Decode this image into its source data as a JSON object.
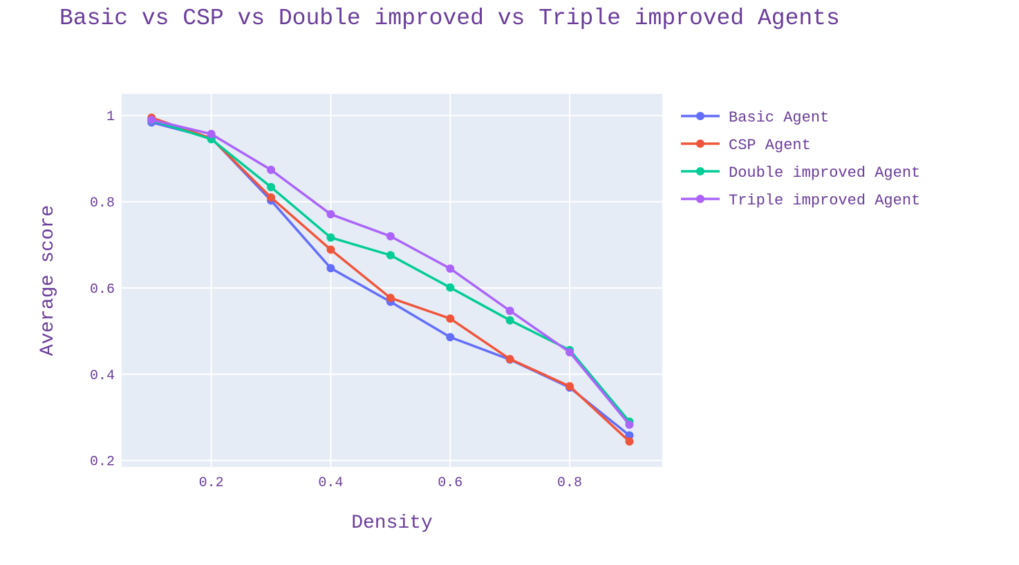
{
  "chart_data": {
    "type": "line",
    "title": "Basic vs CSP vs Double improved vs Triple improved Agents",
    "xlabel": "Density",
    "ylabel": "Average score",
    "xlim": [
      0.05,
      0.955
    ],
    "ylim": [
      0.185,
      1.05
    ],
    "xticks": [
      0.2,
      0.4,
      0.6,
      0.8
    ],
    "xtick_labels": [
      "0.2",
      "0.4",
      "0.6",
      "0.8"
    ],
    "yticks": [
      0.2,
      0.4,
      0.6,
      0.8,
      1
    ],
    "ytick_labels": [
      "0.2",
      "0.4",
      "0.6",
      "0.8",
      "1"
    ],
    "grid": true,
    "legend_position": "right",
    "x": [
      0.1,
      0.2,
      0.3,
      0.4,
      0.5,
      0.6,
      0.7,
      0.8,
      0.9
    ],
    "series": [
      {
        "name": "Basic Agent",
        "color": "#636efa",
        "values": [
          0.984,
          0.948,
          0.803,
          0.646,
          0.568,
          0.486,
          0.434,
          0.369,
          0.258
        ]
      },
      {
        "name": "CSP Agent",
        "color": "#ef553b",
        "values": [
          0.995,
          0.947,
          0.81,
          0.689,
          0.577,
          0.529,
          0.435,
          0.372,
          0.244
        ]
      },
      {
        "name": "Double improved Agent",
        "color": "#00cc96",
        "values": [
          0.989,
          0.945,
          0.834,
          0.717,
          0.676,
          0.601,
          0.525,
          0.456,
          0.29
        ]
      },
      {
        "name": "Triple improved Agent",
        "color": "#ab63fa",
        "values": [
          0.99,
          0.957,
          0.874,
          0.771,
          0.72,
          0.645,
          0.547,
          0.451,
          0.283
        ]
      }
    ]
  }
}
